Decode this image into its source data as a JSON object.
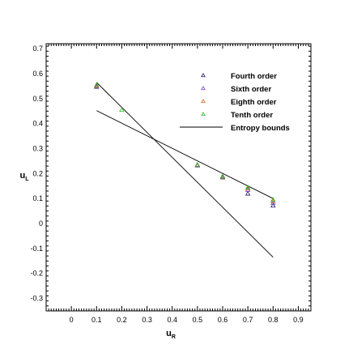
{
  "chart_data": {
    "type": "scatter",
    "xlabel": "u",
    "xlabel_sub": "R",
    "ylabel": "u",
    "ylabel_sub": "L",
    "xlim": [
      -0.1,
      0.95
    ],
    "ylim": [
      -0.35,
      0.72
    ],
    "xticks": [
      0,
      0.1,
      0.2,
      0.3,
      0.4,
      0.5,
      0.6,
      0.7,
      0.8,
      0.9
    ],
    "xtick_labels": [
      "0",
      "0.1",
      "0.2",
      "0.3",
      "0.4",
      "0.5",
      "0.6",
      "0.7",
      "0.8",
      "0.9"
    ],
    "yticks": [
      -0.3,
      -0.2,
      -0.1,
      0,
      0.1,
      0.2,
      0.3,
      0.4,
      0.5,
      0.6,
      0.7
    ],
    "ytick_labels": [
      "-0.3",
      "-0.2",
      "-0.1",
      "0",
      "0.1",
      "0.2",
      "0.3",
      "0.4",
      "0.5",
      "0.6",
      "0.7"
    ],
    "grid": false,
    "legend_position": "top-right",
    "series": [
      {
        "name": "Fourth order",
        "color": "#1a1a5e",
        "marker": "triangle",
        "x": [
          0.1,
          0.5,
          0.6,
          0.7,
          0.8
        ],
        "y": [
          0.548,
          0.233,
          0.185,
          0.12,
          0.072
        ]
      },
      {
        "name": "Sixth order",
        "color": "#7b3fd1",
        "marker": "triangle",
        "x": [
          0.1,
          0.5,
          0.6,
          0.7,
          0.8
        ],
        "y": [
          0.55,
          0.234,
          0.187,
          0.135,
          0.082
        ]
      },
      {
        "name": "Eighth order",
        "color": "#d2691e",
        "marker": "triangle",
        "x": [
          0.1,
          0.5,
          0.6,
          0.7,
          0.8
        ],
        "y": [
          0.552,
          0.235,
          0.188,
          0.14,
          0.09
        ]
      },
      {
        "name": "Tenth order",
        "color": "#2db82d",
        "marker": "triangle",
        "x": [
          0.1,
          0.2,
          0.5,
          0.6,
          0.7,
          0.8
        ],
        "y": [
          0.555,
          0.455,
          0.236,
          0.19,
          0.145,
          0.095
        ]
      }
    ],
    "lines": [
      {
        "name": "Entropy bounds",
        "color": "#000000",
        "x": [
          0.1,
          0.8
        ],
        "y": [
          0.565,
          -0.135
        ]
      },
      {
        "name": "Entropy bounds",
        "color": "#000000",
        "x": [
          0.1,
          0.8
        ],
        "y": [
          0.452,
          0.1
        ]
      }
    ]
  }
}
